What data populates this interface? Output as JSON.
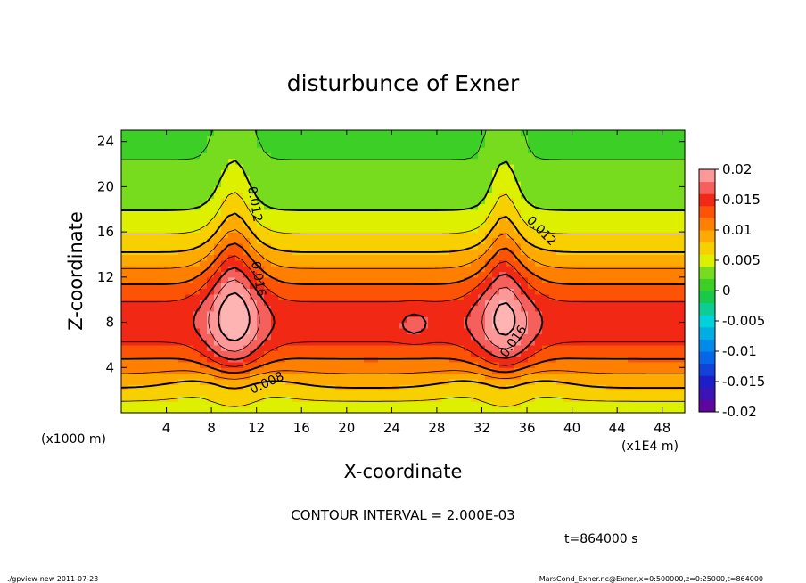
{
  "chart_data": {
    "type": "heatmap",
    "title": "disturbunce of Exner",
    "xlabel": "X-coordinate",
    "ylabel": "Z-coordinate",
    "x_unit_note": "(x1E4 m)",
    "y_unit_note": "(x1000 m)",
    "xlim": [
      0,
      50
    ],
    "ylim": [
      0,
      25
    ],
    "x_ticks": [
      "4",
      "8",
      "12",
      "16",
      "20",
      "24",
      "28",
      "32",
      "36",
      "40",
      "44",
      "48"
    ],
    "y_ticks": [
      "4",
      "8",
      "12",
      "16",
      "20",
      "24"
    ],
    "contour_labels": [
      "0.012",
      "0.016",
      "0.012",
      "0.016",
      "0.008"
    ],
    "colorbar": {
      "min": -0.02,
      "max": 0.02,
      "tick_labels": [
        "0.02",
        "0.015",
        "0.01",
        "0.005",
        "0",
        "-0.005",
        "-0.01",
        "-0.015",
        "-0.02"
      ]
    },
    "contour_interval": "CONTOUR INTERVAL = 2.000E-03",
    "time_label": "t=864000 s",
    "footer_left": "./gpview-new   2011-07-23",
    "footer_right": "MarsCond_Exner.nc@Exner,x=0:500000,z=0:25000,t=864000",
    "field": {
      "peaks": [
        {
          "x": 10.0,
          "z": 8.5,
          "value": 0.019
        },
        {
          "x": 34.0,
          "z": 8.0,
          "value": 0.018
        },
        {
          "x": 26.0,
          "z": 7.8,
          "value": 0.015
        }
      ]
    }
  }
}
